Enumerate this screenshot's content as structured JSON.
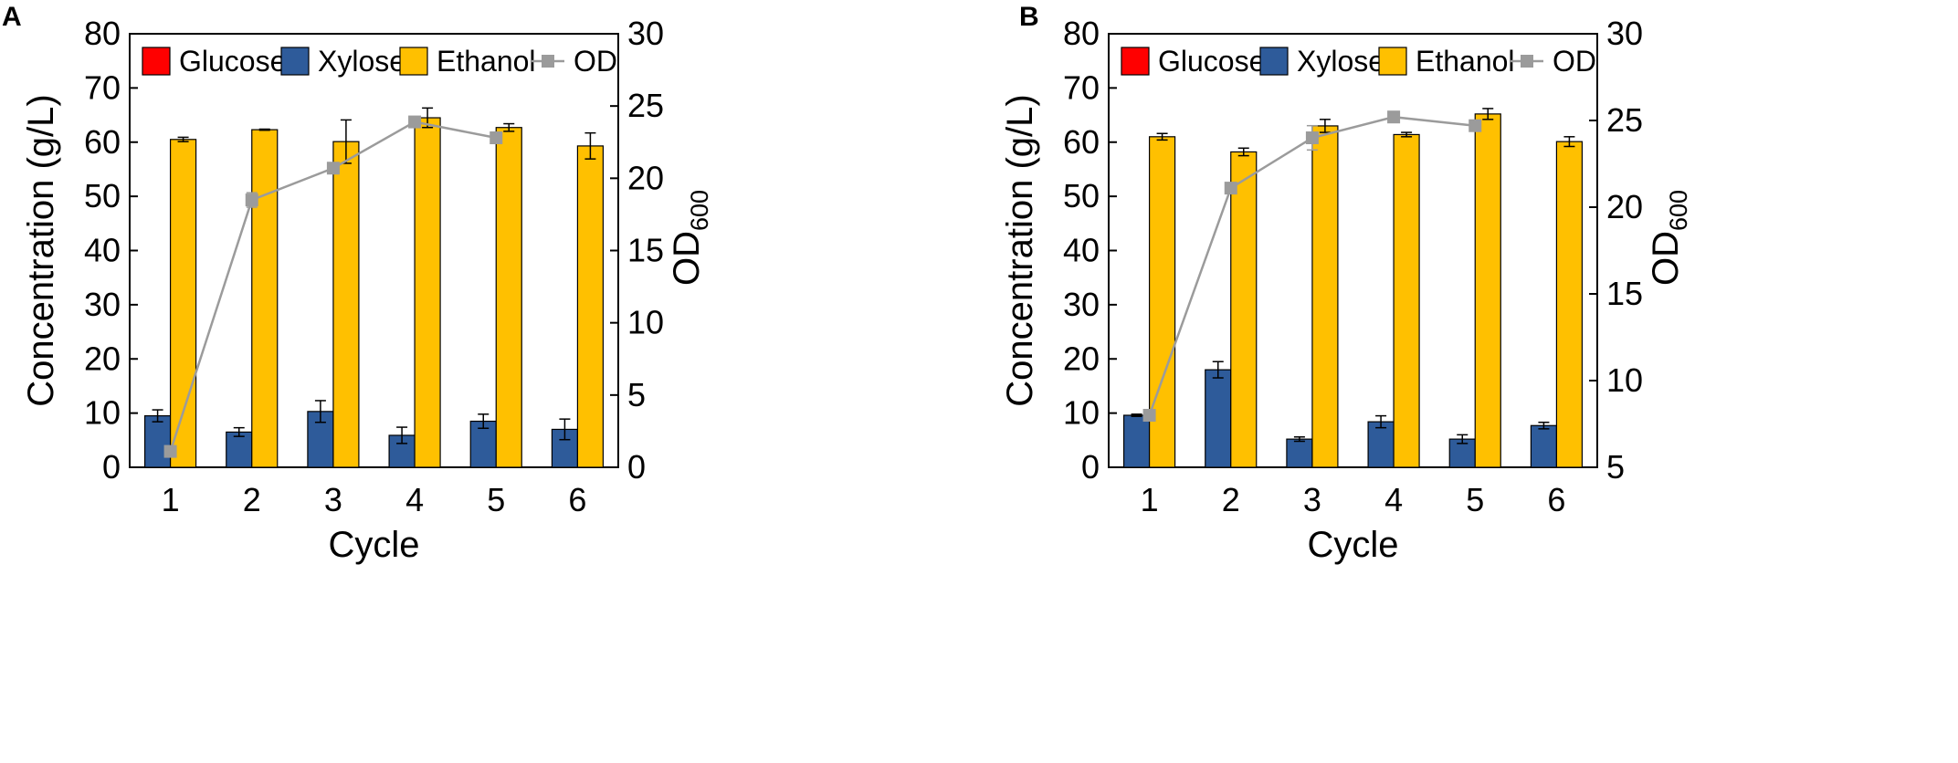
{
  "chart_data": [
    {
      "panel": "A",
      "type": "bar",
      "xlabel": "Cycle",
      "ylabel": "Concentration (g/L)",
      "ylabel_right": "OD",
      "ylabel_right_sub": "600",
      "categories": [
        "1",
        "2",
        "3",
        "4",
        "5",
        "6"
      ],
      "ylim": [
        0,
        80
      ],
      "yticks": [
        "0",
        "10",
        "20",
        "30",
        "40",
        "50",
        "60",
        "70",
        "80"
      ],
      "ylim_right": [
        0,
        30
      ],
      "yticks_right": [
        "0",
        "5",
        "10",
        "15",
        "20",
        "25",
        "30"
      ],
      "legend_position": "top",
      "series": [
        {
          "name": "Glucose",
          "kind": "bar",
          "color": "#ff0000",
          "values": [
            0,
            0,
            0,
            0,
            0,
            0
          ],
          "errors": [
            0,
            0,
            0,
            0,
            0,
            0
          ]
        },
        {
          "name": "Xylose",
          "kind": "bar",
          "color": "#2e5b9a",
          "values": [
            9.5,
            6.5,
            10.3,
            5.9,
            8.5,
            7.0
          ],
          "errors": [
            1.1,
            0.8,
            2.0,
            1.5,
            1.3,
            1.9
          ]
        },
        {
          "name": "Ethanol",
          "kind": "bar",
          "color": "#ffc000",
          "values": [
            60.5,
            62.3,
            60.1,
            64.5,
            62.7,
            59.3
          ],
          "errors": [
            0.4,
            0.1,
            4.0,
            1.8,
            0.7,
            2.4
          ]
        },
        {
          "name": "OD",
          "kind": "line",
          "axis": "right",
          "color": "#9b9b9b",
          "values": [
            1.1,
            18.5,
            20.7,
            23.9,
            22.8,
            null
          ],
          "errors": [
            0,
            0.5,
            0,
            0,
            0,
            0
          ]
        }
      ]
    },
    {
      "panel": "B",
      "type": "bar",
      "xlabel": "Cycle",
      "ylabel": "Concentration (g/L)",
      "ylabel_right": "OD",
      "ylabel_right_sub": "600",
      "categories": [
        "1",
        "2",
        "3",
        "4",
        "5",
        "6"
      ],
      "ylim": [
        0,
        80
      ],
      "yticks": [
        "0",
        "10",
        "20",
        "30",
        "40",
        "50",
        "60",
        "70",
        "80"
      ],
      "ylim_right": [
        5,
        30
      ],
      "yticks_right": [
        "5",
        "10",
        "15",
        "20",
        "25",
        "30"
      ],
      "legend_position": "top",
      "series": [
        {
          "name": "Glucose",
          "kind": "bar",
          "color": "#ff0000",
          "values": [
            0,
            0,
            0,
            0,
            0,
            0
          ],
          "errors": [
            0,
            0,
            0,
            0,
            0,
            0
          ]
        },
        {
          "name": "Xylose",
          "kind": "bar",
          "color": "#2e5b9a",
          "values": [
            9.6,
            18.0,
            5.2,
            8.4,
            5.2,
            7.7
          ],
          "errors": [
            0.2,
            1.5,
            0.4,
            1.1,
            0.8,
            0.6
          ]
        },
        {
          "name": "Ethanol",
          "kind": "bar",
          "color": "#ffc000",
          "values": [
            61.0,
            58.2,
            63.0,
            61.4,
            65.2,
            60.1
          ],
          "errors": [
            0.6,
            0.7,
            1.2,
            0.4,
            1.0,
            0.9
          ]
        },
        {
          "name": "OD",
          "kind": "line",
          "axis": "right",
          "color": "#9b9b9b",
          "values": [
            8.0,
            21.1,
            24.0,
            25.2,
            24.7,
            null
          ],
          "errors": [
            0,
            0,
            0.7,
            0.3,
            0,
            0
          ]
        }
      ]
    }
  ]
}
